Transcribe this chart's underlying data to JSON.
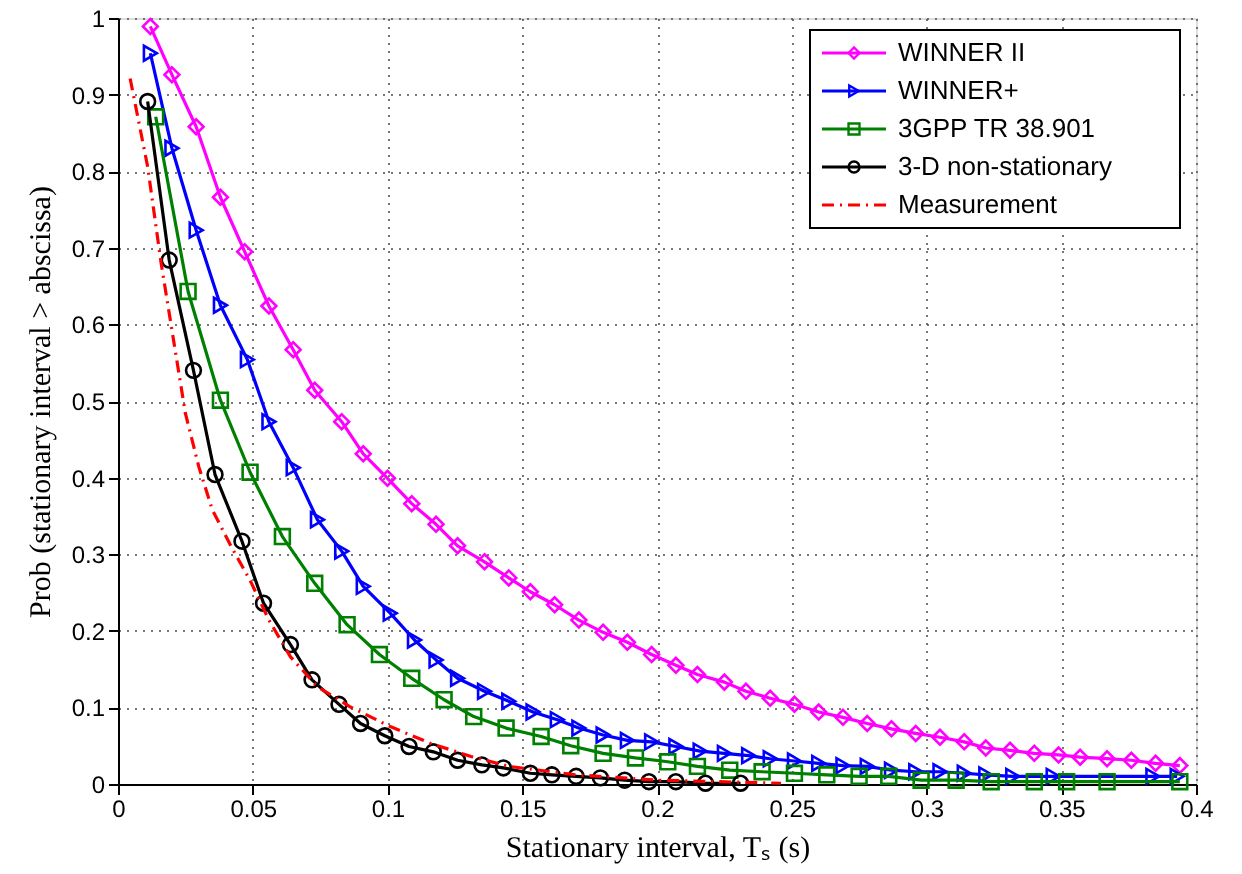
{
  "chart_data": {
    "type": "line",
    "xlabel": "Stationary interval, Tₛ (s)",
    "ylabel": "Prob (stationary interval > abscissa)",
    "xlim": [
      0,
      0.4
    ],
    "ylim": [
      0,
      1
    ],
    "xticks": [
      0,
      0.05,
      0.1,
      0.15,
      0.2,
      0.25,
      0.3,
      0.35,
      0.4
    ],
    "yticks": [
      0,
      0.1,
      0.2,
      0.3,
      0.4,
      0.5,
      0.6,
      0.7,
      0.8,
      0.9,
      1
    ],
    "grid": true,
    "legend": "top right",
    "series": [
      {
        "name": "WINNER II",
        "color": "#ff00ff",
        "marker": "diamond",
        "line_style": "solid",
        "x": [
          0.012,
          0.02,
          0.029,
          0.038,
          0.047,
          0.056,
          0.065,
          0.073,
          0.083,
          0.091,
          0.1,
          0.109,
          0.118,
          0.126,
          0.136,
          0.145,
          0.153,
          0.162,
          0.171,
          0.18,
          0.189,
          0.198,
          0.207,
          0.215,
          0.225,
          0.233,
          0.242,
          0.251,
          0.26,
          0.269,
          0.278,
          0.287,
          0.296,
          0.305,
          0.314,
          0.322,
          0.331,
          0.34,
          0.349,
          0.357,
          0.367,
          0.376,
          0.385,
          0.394
        ],
        "values": [
          0.989,
          0.926,
          0.858,
          0.766,
          0.695,
          0.624,
          0.567,
          0.514,
          0.473,
          0.431,
          0.399,
          0.366,
          0.339,
          0.311,
          0.29,
          0.269,
          0.251,
          0.234,
          0.214,
          0.198,
          0.185,
          0.169,
          0.155,
          0.143,
          0.133,
          0.121,
          0.112,
          0.104,
          0.094,
          0.087,
          0.079,
          0.072,
          0.066,
          0.061,
          0.055,
          0.047,
          0.044,
          0.04,
          0.038,
          0.035,
          0.033,
          0.031,
          0.027,
          0.024
        ]
      },
      {
        "name": "WINNER+",
        "color": "#0000ff",
        "marker": "triangle",
        "line_style": "solid",
        "x": [
          0.012,
          0.02,
          0.029,
          0.038,
          0.048,
          0.056,
          0.065,
          0.074,
          0.083,
          0.091,
          0.101,
          0.11,
          0.118,
          0.126,
          0.136,
          0.145,
          0.154,
          0.163,
          0.171,
          0.18,
          0.189,
          0.198,
          0.207,
          0.216,
          0.225,
          0.234,
          0.242,
          0.251,
          0.26,
          0.269,
          0.278,
          0.287,
          0.296,
          0.305,
          0.314,
          0.322,
          0.332,
          0.347,
          0.384,
          0.393
        ],
        "values": [
          0.954,
          0.83,
          0.723,
          0.625,
          0.554,
          0.473,
          0.413,
          0.345,
          0.304,
          0.258,
          0.223,
          0.188,
          0.162,
          0.138,
          0.121,
          0.108,
          0.094,
          0.084,
          0.073,
          0.064,
          0.057,
          0.055,
          0.049,
          0.043,
          0.04,
          0.037,
          0.033,
          0.03,
          0.027,
          0.024,
          0.023,
          0.018,
          0.016,
          0.016,
          0.014,
          0.012,
          0.01,
          0.01,
          0.01,
          0.01
        ]
      },
      {
        "name": "3GPP TR 38.901",
        "color": "#008000",
        "marker": "square",
        "line_style": "solid",
        "x": [
          0.014,
          0.026,
          0.038,
          0.049,
          0.061,
          0.073,
          0.085,
          0.097,
          0.109,
          0.121,
          0.132,
          0.144,
          0.157,
          0.168,
          0.18,
          0.192,
          0.204,
          0.215,
          0.227,
          0.239,
          0.251,
          0.263,
          0.275,
          0.286,
          0.298,
          0.311,
          0.324,
          0.34,
          0.352,
          0.367,
          0.394
        ],
        "values": [
          0.871,
          0.643,
          0.501,
          0.407,
          0.323,
          0.262,
          0.208,
          0.169,
          0.138,
          0.11,
          0.088,
          0.073,
          0.062,
          0.05,
          0.04,
          0.034,
          0.029,
          0.023,
          0.018,
          0.016,
          0.014,
          0.012,
          0.01,
          0.01,
          0.005,
          0.005,
          0.003,
          0.003,
          0.003,
          0.003,
          0.003
        ]
      },
      {
        "name": "3-D non-stationary",
        "color": "#000000",
        "marker": "circle",
        "line_style": "solid",
        "x": [
          0.011,
          0.019,
          0.028,
          0.036,
          0.046,
          0.054,
          0.064,
          0.072,
          0.082,
          0.09,
          0.099,
          0.108,
          0.117,
          0.126,
          0.135,
          0.143,
          0.153,
          0.161,
          0.17,
          0.179,
          0.188,
          0.197,
          0.207,
          0.218,
          0.231
        ],
        "values": [
          0.891,
          0.684,
          0.54,
          0.404,
          0.317,
          0.236,
          0.182,
          0.136,
          0.104,
          0.079,
          0.063,
          0.049,
          0.042,
          0.031,
          0.025,
          0.021,
          0.014,
          0.012,
          0.01,
          0.008,
          0.005,
          0.003,
          0.003,
          0.001,
          0.001
        ]
      },
      {
        "name": "Measurement",
        "color": "#ff0000",
        "marker": "none",
        "line_style": "dashed",
        "x": [
          0.0045,
          0.011,
          0.016,
          0.021,
          0.025,
          0.03,
          0.035,
          0.042,
          0.049,
          0.056,
          0.064,
          0.074,
          0.086,
          0.101,
          0.116,
          0.131,
          0.145,
          0.17,
          0.2,
          0.246
        ],
        "values": [
          0.921,
          0.806,
          0.68,
          0.571,
          0.484,
          0.414,
          0.358,
          0.31,
          0.266,
          0.214,
          0.166,
          0.127,
          0.101,
          0.075,
          0.053,
          0.036,
          0.023,
          0.012,
          0.005,
          0.001
        ]
      }
    ]
  }
}
